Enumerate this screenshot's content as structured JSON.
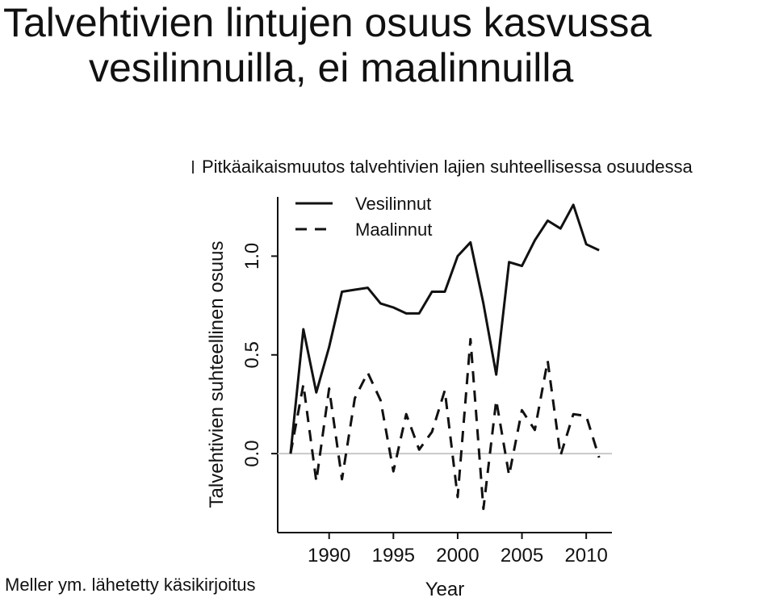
{
  "slide": {
    "title_line1": "Talvehtivien lintujen osuus kasvussa",
    "title_line2": "vesilinnuilla, ei maalinnuilla",
    "subtitle": "Pitkäaikaismuutos talvehtivien lajien suhteellisessa osuudessa",
    "source": "Meller ym. lähetetty käsikirjoitus"
  },
  "chart_data": {
    "type": "line",
    "xlabel": "Year",
    "ylabel": "Talvehtivien suhteellinen osuus",
    "xlim": [
      1986,
      2012
    ],
    "ylim": [
      -0.4,
      1.3
    ],
    "xticks": [
      1990,
      1995,
      2000,
      2005,
      2010
    ],
    "yticks": [
      0.0,
      0.5,
      1.0
    ],
    "ytick_labels": [
      "0.0",
      "0.5",
      "1.0"
    ],
    "zero_line": true,
    "legend_position": "top-left",
    "x": [
      1987,
      1988,
      1989,
      1990,
      1991,
      1992,
      1993,
      1994,
      1995,
      1996,
      1997,
      1998,
      1999,
      2000,
      2001,
      2002,
      2003,
      2004,
      2005,
      2006,
      2007,
      2008,
      2009,
      2010,
      2011
    ],
    "series": [
      {
        "name": "Vesilinnut",
        "style": "solid",
        "values": [
          0.0,
          0.63,
          0.31,
          0.54,
          0.82,
          0.83,
          0.84,
          0.76,
          0.74,
          0.71,
          0.71,
          0.82,
          0.82,
          1.0,
          1.07,
          0.76,
          0.4,
          0.97,
          0.95,
          1.08,
          1.18,
          1.14,
          1.26,
          1.06,
          1.03
        ]
      },
      {
        "name": "Maalinnut",
        "style": "dashed",
        "values": [
          0.0,
          0.35,
          -0.14,
          0.33,
          -0.13,
          0.28,
          0.41,
          0.27,
          -0.09,
          0.2,
          0.02,
          0.11,
          0.32,
          -0.22,
          0.58,
          -0.28,
          0.27,
          -0.11,
          0.22,
          0.12,
          0.47,
          -0.01,
          0.2,
          0.19,
          -0.02
        ]
      }
    ],
    "line_color": "#111111",
    "zero_line_color": "#c8c8c8"
  }
}
